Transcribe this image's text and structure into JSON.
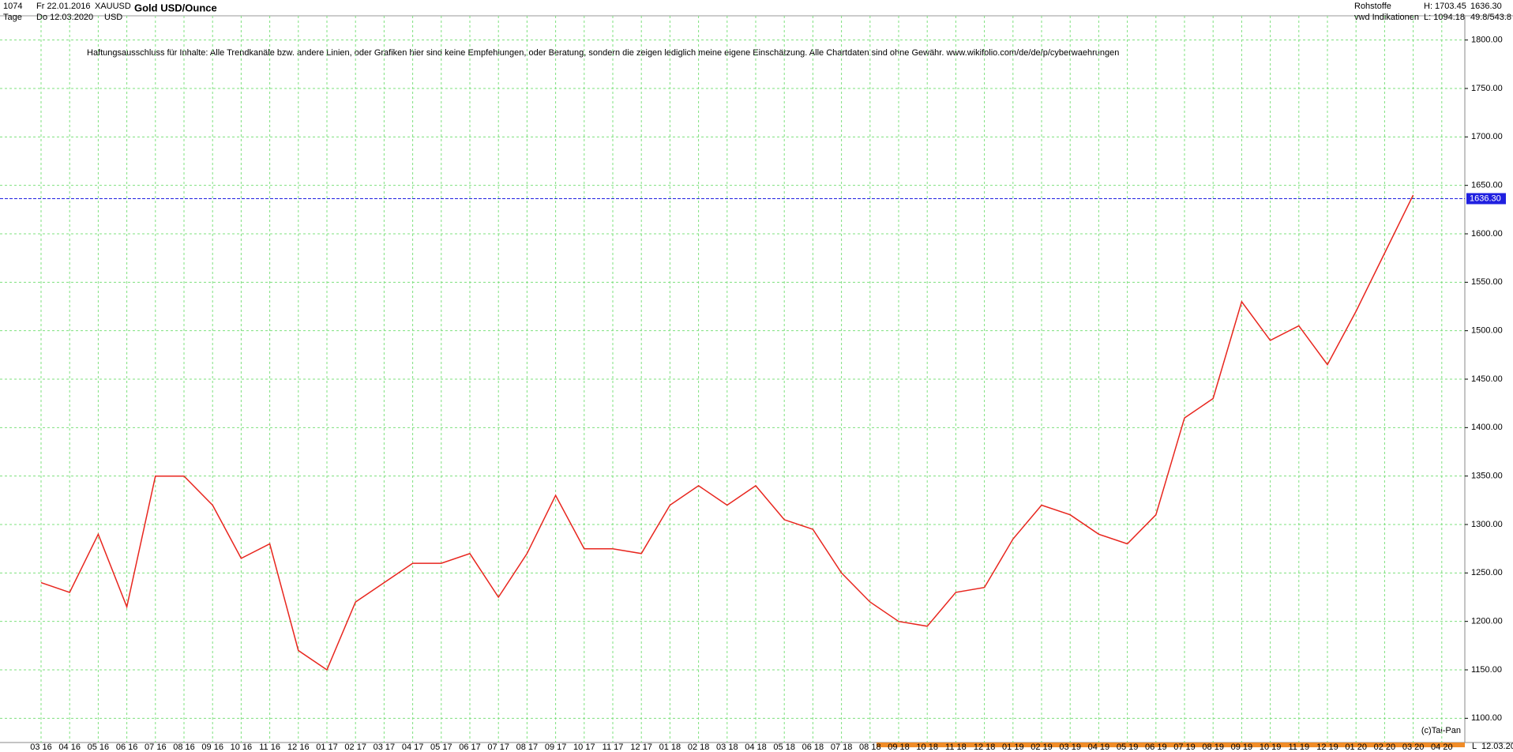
{
  "header": {
    "count": "1074",
    "from": "Fr 22.01.2016",
    "symbol": "XAUUSD",
    "name": "Gold USD/Ounce",
    "period": "Tage",
    "to": "Do 12.03.2020",
    "currency": "USD",
    "group": "Rohstoffe",
    "source": "vwd Indikationen",
    "high": "H: 1703.45",
    "low": "L: 1094.18",
    "last": "1636.30",
    "extra": "49.8/543.8"
  },
  "disclaimer": "Haftungsausschluss für Inhalte: Alle Trendkanäle bzw. andere Linien, oder Grafiken hier sind keine Empfehlungen, oder Beratung, sondern die zeigen lediglich meine eigene Einschätzung. Alle Chartdaten sind ohne Gewähr.  www.wikifolio.com/de/de/p/cyberwaehrungen",
  "footer": {
    "copyright": "(c)Tai-Pan",
    "date": "12.03.20",
    "scale": "L"
  },
  "chart_data": {
    "type": "line",
    "title": "Gold USD/Ounce",
    "categories": [
      "03 16",
      "04 16",
      "05 16",
      "06 16",
      "07 16",
      "08 16",
      "09 16",
      "10 16",
      "11 16",
      "12 16",
      "01 17",
      "02 17",
      "03 17",
      "04 17",
      "05 17",
      "06 17",
      "07 17",
      "08 17",
      "09 17",
      "10 17",
      "11 17",
      "12 17",
      "01 18",
      "02 18",
      "03 18",
      "04 18",
      "05 18",
      "06 18",
      "07 18",
      "08 18",
      "09 18",
      "10 18",
      "11 18",
      "12 18",
      "01 19",
      "02 19",
      "03 19",
      "04 19",
      "05 19",
      "06 19",
      "07 19",
      "08 19",
      "09 19",
      "10 19",
      "11 19",
      "12 19",
      "01 20",
      "02 20",
      "03 20",
      "04 20"
    ],
    "series": [
      {
        "name": "XAUUSD",
        "color": "#e8261e",
        "values": [
          1240,
          1230,
          1290,
          1215,
          1350,
          1350,
          1320,
          1265,
          1280,
          1170,
          1150,
          1220,
          1240,
          1260,
          1260,
          1270,
          1225,
          1270,
          1330,
          1275,
          1275,
          1270,
          1320,
          1340,
          1320,
          1340,
          1305,
          1295,
          1250,
          1220,
          1200,
          1195,
          1230,
          1235,
          1285,
          1320,
          1310,
          1290,
          1280,
          1310,
          1410,
          1430,
          1530,
          1490,
          1505,
          1465,
          1520,
          1580,
          1640,
          null
        ]
      }
    ],
    "current": {
      "value": 1636.3,
      "label": "1636.30",
      "color": "#2020e0"
    },
    "ylim": [
      1075,
      1825
    ],
    "yticks": [
      {
        "value": 1100,
        "label": "1100.00"
      },
      {
        "value": 1150,
        "label": "1150.00"
      },
      {
        "value": 1200,
        "label": "1200.00"
      },
      {
        "value": 1250,
        "label": "1250.00"
      },
      {
        "value": 1300,
        "label": "1300.00"
      },
      {
        "value": 1350,
        "label": "1350.00"
      },
      {
        "value": 1400,
        "label": "1400.00"
      },
      {
        "value": 1450,
        "label": "1450.00"
      },
      {
        "value": 1500,
        "label": "1500.00"
      },
      {
        "value": 1550,
        "label": "1550.00"
      },
      {
        "value": 1600,
        "label": "1600.00"
      },
      {
        "value": 1650,
        "label": "1650.00"
      },
      {
        "value": 1700,
        "label": "1700.00"
      },
      {
        "value": 1750,
        "label": "1750.00"
      },
      {
        "value": 1800,
        "label": "1800.00"
      }
    ],
    "grid": true
  }
}
